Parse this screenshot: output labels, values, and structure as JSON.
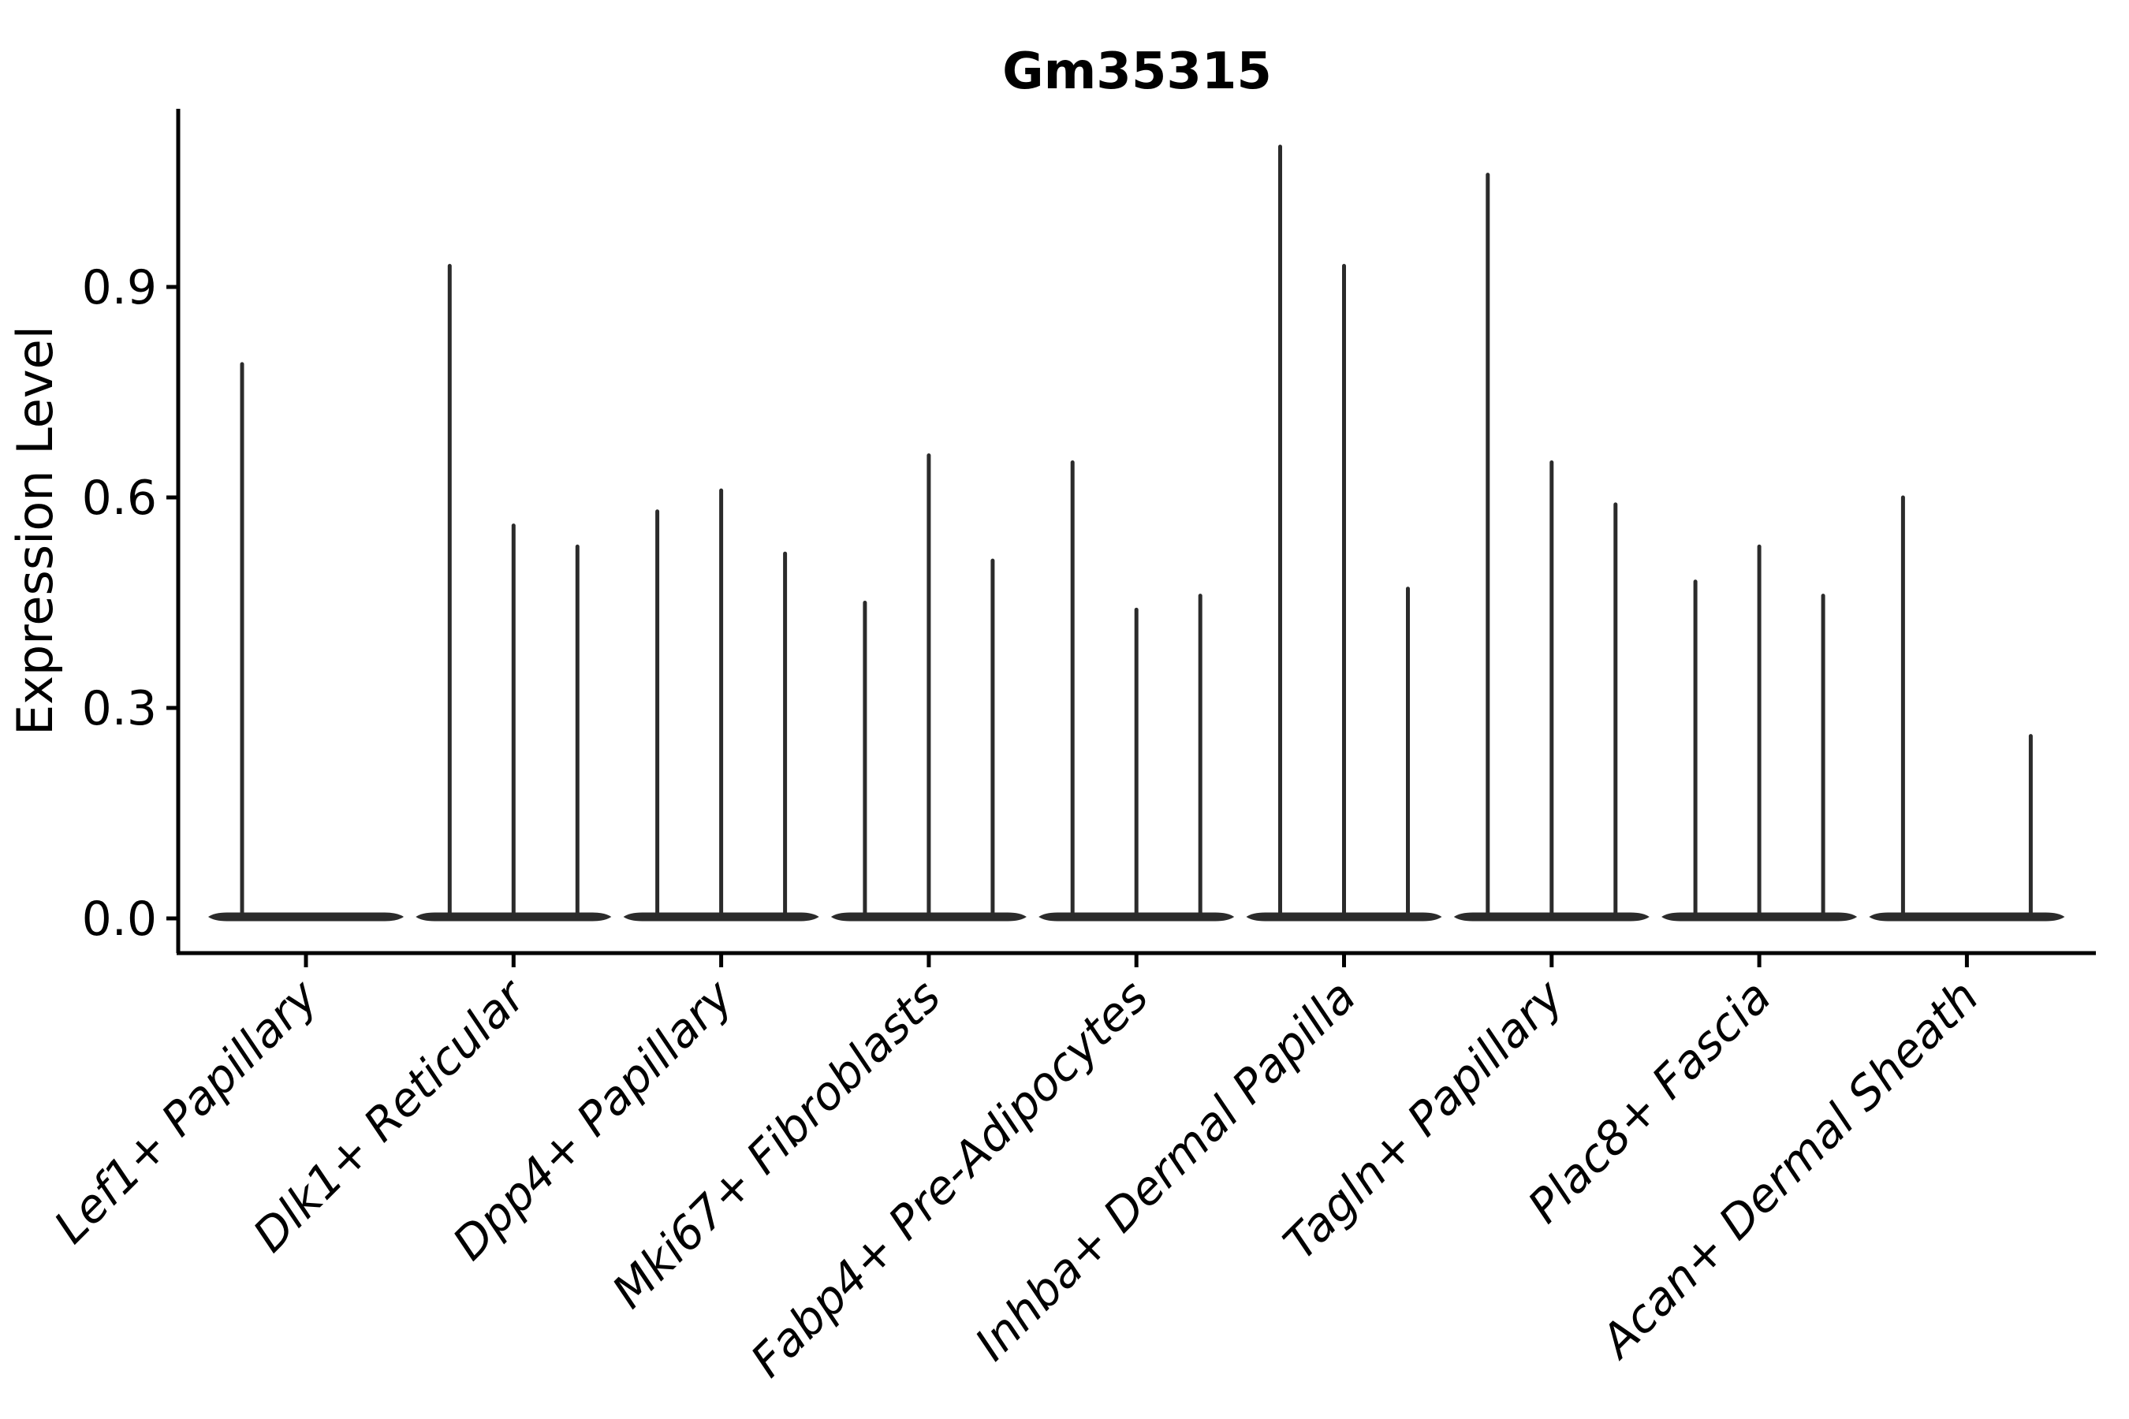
{
  "title": "Gm35315",
  "colors": {
    "violin": "#2b2b2b",
    "axis": "#000000",
    "text": "#000000",
    "background": "#ffffff"
  },
  "chart_data": {
    "type": "violin",
    "title": "Gm35315",
    "xlabel": "",
    "ylabel": "Expression Level",
    "ylim": [
      -0.05,
      1.15
    ],
    "yticks": [
      0.0,
      0.3,
      0.6,
      0.9
    ],
    "ytick_labels": [
      "0.0",
      "0.3",
      "0.6",
      "0.9"
    ],
    "grid": false,
    "legend": "none",
    "violins_per_category": 3,
    "xtick_rotation_deg": 45,
    "description": "Sparse single-cell expression: each category shows 3 thin violins flattened at 0 with a narrow spike up to the max expression value; 0 means a completely flat violin (no spike).",
    "categories": [
      "Lef1+ Papillary",
      "Dlk1+ Reticular",
      "Dpp4+ Papillary",
      "Mki67+ Fibroblasts",
      "Fabp4+ Pre-Adipocytes",
      "Inhba+ Dermal Papilla",
      "Tagln+ Papillary",
      "Plac8+ Fascia",
      "Acan+ Dermal Sheath"
    ],
    "series": [
      {
        "category": "Lef1+ Papillary",
        "max_values": [
          0.79,
          0,
          0
        ]
      },
      {
        "category": "Dlk1+ Reticular",
        "max_values": [
          0.93,
          0.56,
          0.53
        ]
      },
      {
        "category": "Dpp4+ Papillary",
        "max_values": [
          0.58,
          0.61,
          0.52
        ]
      },
      {
        "category": "Mki67+ Fibroblasts",
        "max_values": [
          0.45,
          0.66,
          0.51
        ]
      },
      {
        "category": "Fabp4+ Pre-Adipocytes",
        "max_values": [
          0.65,
          0.44,
          0.46
        ]
      },
      {
        "category": "Inhba+ Dermal Papilla",
        "max_values": [
          1.1,
          0.93,
          0.47
        ]
      },
      {
        "category": "Tagln+ Papillary",
        "max_values": [
          1.06,
          0.65,
          0.59
        ]
      },
      {
        "category": "Plac8+ Fascia",
        "max_values": [
          0.48,
          0.53,
          0.46
        ]
      },
      {
        "category": "Acan+ Dermal Sheath",
        "max_values": [
          0.6,
          0,
          0.26
        ]
      }
    ]
  }
}
